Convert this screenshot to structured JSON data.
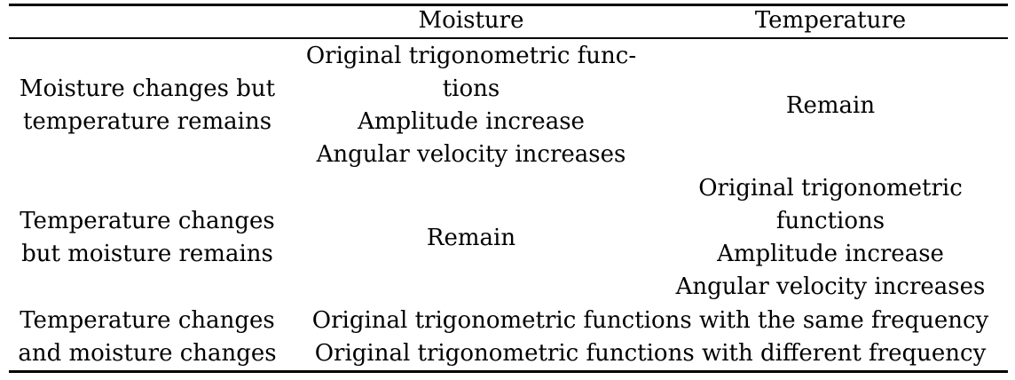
{
  "table": {
    "header": {
      "col1": "",
      "col2": "Moisture",
      "col3": "Temperature"
    },
    "rows": [
      {
        "label": [
          "Moisture changes but",
          "temperature remains"
        ],
        "moisture": [
          "Original trigonometric func-",
          "tions",
          "Amplitude increase",
          "Angular velocity increases"
        ],
        "temperature": [
          "Remain"
        ]
      },
      {
        "label": [
          "Temperature changes",
          "but moisture remains"
        ],
        "moisture": [
          "Remain"
        ],
        "temperature": [
          "Original trigonometric",
          "functions",
          "Amplitude increase",
          "Angular velocity increases"
        ]
      },
      {
        "label": [
          "Temperature changes",
          "and moisture changes"
        ],
        "combined": [
          "Original trigonometric functions with the same frequency",
          "Original trigonometric functions with different frequency"
        ]
      }
    ]
  }
}
